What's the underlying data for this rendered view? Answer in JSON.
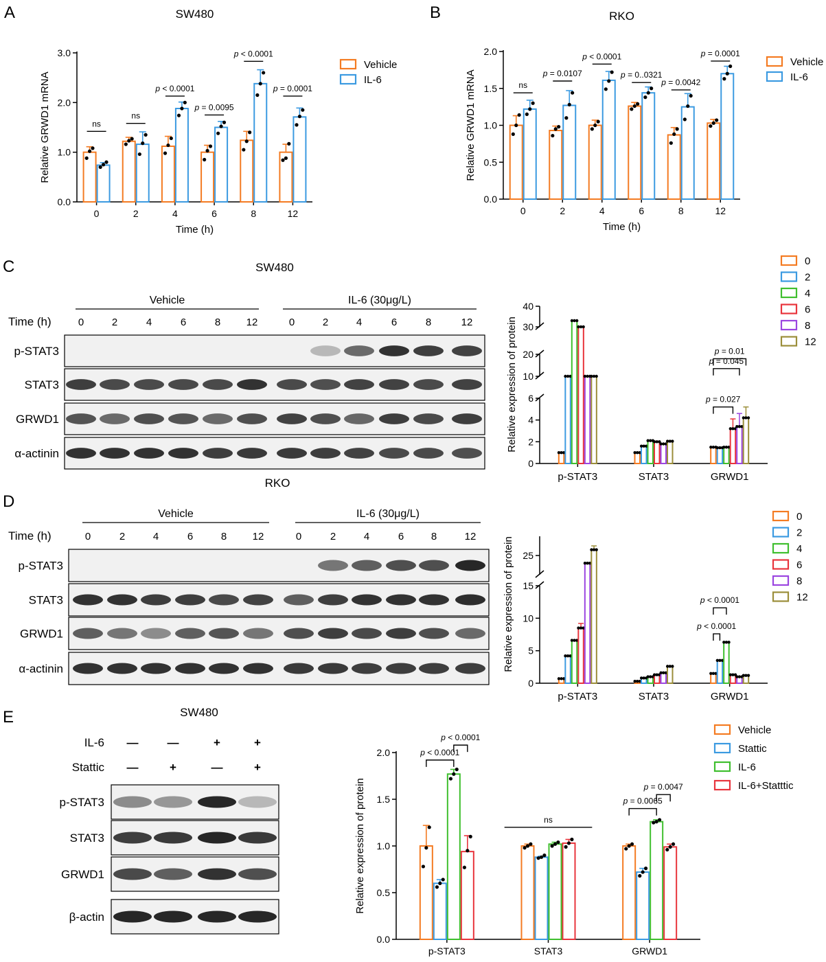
{
  "panels": [
    "A",
    "B",
    "C",
    "D",
    "E"
  ],
  "chart_data": [
    {
      "id": "A",
      "type": "bar",
      "title": "SW480",
      "xlabel": "Time (h)",
      "ylabel": "Relative GRWD1 mRNA",
      "categories": [
        "0",
        "2",
        "4",
        "6",
        "8",
        "12"
      ],
      "ylim": [
        0,
        3
      ],
      "yticks": [
        "0.0",
        "1.0",
        "2.0",
        "3.0"
      ],
      "legend": "top-right",
      "series": [
        {
          "name": "Vehicle",
          "color": "#f47b22",
          "values": [
            1.0,
            1.22,
            1.12,
            1.0,
            1.24,
            1.0
          ],
          "errors": [
            0.11,
            0.08,
            0.2,
            0.14,
            0.18,
            0.16
          ],
          "points": [
            [
              0.88,
              1.02,
              1.08
            ],
            [
              1.16,
              1.23,
              1.27
            ],
            [
              0.98,
              1.14,
              1.28
            ],
            [
              0.85,
              1.03,
              1.12
            ],
            [
              1.05,
              1.22,
              1.4
            ],
            [
              0.84,
              0.88,
              1.17
            ]
          ]
        },
        {
          "name": "IL-6",
          "color": "#3b9ae1",
          "values": [
            0.74,
            1.16,
            1.88,
            1.5,
            2.38,
            1.71
          ],
          "errors": [
            0.05,
            0.25,
            0.13,
            0.12,
            0.28,
            0.18
          ],
          "points": [
            [
              0.7,
              0.75,
              0.8
            ],
            [
              0.96,
              1.18,
              1.35
            ],
            [
              1.74,
              1.88,
              2.0
            ],
            [
              1.38,
              1.52,
              1.6
            ],
            [
              2.15,
              2.38,
              2.6
            ],
            [
              1.55,
              1.72,
              1.85
            ]
          ]
        }
      ],
      "annotations": [
        {
          "between": [
            0,
            0
          ],
          "label": "ns",
          "y": 1.42
        },
        {
          "between": [
            1,
            1
          ],
          "label": "ns",
          "y": 1.58
        },
        {
          "between": [
            2,
            2
          ],
          "label": "p < 0.0001",
          "y": 2.13
        },
        {
          "between": [
            3,
            3
          ],
          "label": "p = 0.0095",
          "y": 1.75
        },
        {
          "between": [
            4,
            4
          ],
          "label": "p < 0.0001",
          "y": 2.83
        },
        {
          "between": [
            5,
            5
          ],
          "label": "p = 0.0001",
          "y": 2.13
        }
      ]
    },
    {
      "id": "B",
      "type": "bar",
      "title": "RKO",
      "xlabel": "Time (h)",
      "ylabel": "Relative GRWD1 mRNA",
      "categories": [
        "0",
        "2",
        "4",
        "6",
        "8",
        "12"
      ],
      "ylim": [
        0,
        2.0
      ],
      "yticks": [
        "0.0",
        "0.5",
        "1.0",
        "1.5",
        "2.0"
      ],
      "legend": "top-right",
      "series": [
        {
          "name": "Vehicle",
          "color": "#f47b22",
          "values": [
            1.0,
            0.93,
            1.0,
            1.26,
            0.87,
            1.03
          ],
          "errors": [
            0.13,
            0.06,
            0.07,
            0.05,
            0.1,
            0.05
          ],
          "points": [
            [
              0.88,
              1.0,
              1.14
            ],
            [
              0.86,
              0.95,
              0.98
            ],
            [
              0.95,
              1.0,
              1.05
            ],
            [
              1.22,
              1.26,
              1.29
            ],
            [
              0.76,
              0.88,
              0.95
            ],
            [
              0.99,
              1.03,
              1.07
            ]
          ]
        },
        {
          "name": "IL-6",
          "color": "#3b9ae1",
          "values": [
            1.22,
            1.27,
            1.61,
            1.44,
            1.25,
            1.7
          ],
          "errors": [
            0.12,
            0.2,
            0.12,
            0.08,
            0.18,
            0.1
          ],
          "points": [
            [
              1.15,
              1.22,
              1.3
            ],
            [
              1.1,
              1.28,
              1.44
            ],
            [
              1.49,
              1.6,
              1.72
            ],
            [
              1.38,
              1.44,
              1.5
            ],
            [
              1.08,
              1.26,
              1.4
            ],
            [
              1.63,
              1.7,
              1.8
            ]
          ]
        }
      ],
      "annotations": [
        {
          "between": [
            0,
            0
          ],
          "label": "ns",
          "y": 1.44
        },
        {
          "between": [
            1,
            1
          ],
          "label": "p = 0.0107",
          "y": 1.6
        },
        {
          "between": [
            2,
            2
          ],
          "label": "p < 0.0001",
          "y": 1.83
        },
        {
          "between": [
            3,
            3
          ],
          "label": "p = 0..0321",
          "y": 1.58
        },
        {
          "between": [
            4,
            4
          ],
          "label": "p = 0.0042",
          "y": 1.48
        },
        {
          "between": [
            5,
            5
          ],
          "label": "p = 0.0001",
          "y": 1.87
        }
      ]
    },
    {
      "id": "C",
      "type": "bar",
      "title": "",
      "xlabel": "",
      "ylabel": "Relative expression of protein",
      "categories": [
        "p-STAT3",
        "STAT3",
        "GRWD1"
      ],
      "broken_axis": true,
      "segments": [
        {
          "range": [
            0,
            6
          ],
          "ticks": [
            "0",
            "2",
            "4",
            "6"
          ]
        },
        {
          "range": [
            10,
            20
          ],
          "ticks": [
            "10",
            "20"
          ]
        },
        {
          "range": [
            30,
            40
          ],
          "ticks": [
            "30",
            "40"
          ]
        }
      ],
      "legend": "top-right",
      "series": [
        {
          "name": "0",
          "color": "#f47b22",
          "values": [
            1.0,
            1.0,
            1.5
          ],
          "errors": [
            0,
            0,
            0
          ]
        },
        {
          "name": "2",
          "color": "#3b9ae1",
          "values": [
            8.2,
            1.6,
            1.45
          ],
          "errors": [
            0,
            0,
            0
          ]
        },
        {
          "name": "4",
          "color": "#3fbf2e",
          "values": [
            33.0,
            2.1,
            1.5
          ],
          "errors": [
            0,
            0,
            0
          ]
        },
        {
          "name": "6",
          "color": "#e8343c",
          "values": [
            29.0,
            2.0,
            3.2
          ],
          "errors": [
            0,
            0,
            0.9
          ]
        },
        {
          "name": "8",
          "color": "#9b45e0",
          "values": [
            9.8,
            1.8,
            3.4
          ],
          "errors": [
            0,
            0,
            1.2
          ]
        },
        {
          "name": "12",
          "color": "#9b8e3a",
          "values": [
            10.0,
            2.05,
            4.2
          ],
          "errors": [
            0,
            0,
            1.0
          ]
        }
      ],
      "annotations": [
        {
          "group": 2,
          "between": [
            0,
            3
          ],
          "label": "p = 0.027",
          "y": 5.2
        },
        {
          "group": 2,
          "between": [
            0,
            4
          ],
          "label": "p = 0.045",
          "y": 13.5
        },
        {
          "group": 2,
          "between": [
            0,
            5
          ],
          "label": "p = 0.01",
          "y": 18.0
        }
      ]
    },
    {
      "id": "D",
      "type": "bar",
      "title": "",
      "xlabel": "",
      "ylabel": "Relative expression of protein",
      "categories": [
        "p-STAT3",
        "STAT3",
        "GRWD1"
      ],
      "broken_axis": true,
      "segments": [
        {
          "range": [
            0,
            15
          ],
          "ticks": [
            "0",
            "5",
            "10",
            "15"
          ]
        },
        {
          "range": [
            20,
            30
          ],
          "ticks": [
            "25"
          ]
        }
      ],
      "legend": "top-right",
      "series": [
        {
          "name": "0",
          "color": "#f47b22",
          "values": [
            0.7,
            0.3,
            1.5
          ],
          "errors": [
            0,
            0,
            0
          ]
        },
        {
          "name": "2",
          "color": "#3b9ae1",
          "values": [
            4.2,
            0.8,
            3.5
          ],
          "errors": [
            0,
            0,
            0
          ]
        },
        {
          "name": "4",
          "color": "#3fbf2e",
          "values": [
            6.6,
            1.0,
            6.3
          ],
          "errors": [
            0,
            0,
            0
          ]
        },
        {
          "name": "6",
          "color": "#e8343c",
          "values": [
            8.5,
            1.3,
            1.3
          ],
          "errors": [
            0.7,
            0,
            0
          ]
        },
        {
          "name": "8",
          "color": "#9b45e0",
          "values": [
            23.0,
            1.6,
            1.0
          ],
          "errors": [
            0,
            0,
            0
          ]
        },
        {
          "name": "12",
          "color": "#9b8e3a",
          "values": [
            26.5,
            2.6,
            1.2
          ],
          "errors": [
            1.0,
            0,
            0
          ]
        }
      ],
      "annotations": [
        {
          "group": 2,
          "between": [
            0,
            1
          ],
          "label": "p < 0.0001",
          "y": 7.6
        },
        {
          "group": 2,
          "between": [
            0,
            2
          ],
          "label": "p < 0.0001",
          "y": 11.6
        }
      ]
    },
    {
      "id": "E",
      "type": "bar",
      "title": "",
      "xlabel": "",
      "ylabel": "Relative expression of protein",
      "categories": [
        "p-STAT3",
        "STAT3",
        "GRWD1"
      ],
      "ylim": [
        0,
        2.0
      ],
      "yticks": [
        "0.0",
        "0.5",
        "1.0",
        "1.5",
        "2.0"
      ],
      "legend": "top-right",
      "series": [
        {
          "name": "Vehicle",
          "color": "#f47b22",
          "values": [
            1.0,
            1.0,
            1.0
          ],
          "errors": [
            0.22,
            0.02,
            0.02
          ],
          "points": [
            [
              0.78,
              0.98,
              1.2
            ],
            [
              0.98,
              1.0,
              1.02
            ],
            [
              0.97,
              1.0,
              1.02
            ]
          ]
        },
        {
          "name": "Stattic",
          "color": "#3b9ae1",
          "values": [
            0.6,
            0.88,
            0.72
          ],
          "errors": [
            0.04,
            0.01,
            0.04
          ],
          "points": [
            [
              0.56,
              0.6,
              0.64
            ],
            [
              0.87,
              0.88,
              0.9
            ],
            [
              0.68,
              0.72,
              0.76
            ]
          ]
        },
        {
          "name": "IL-6",
          "color": "#3fbf2e",
          "values": [
            1.77,
            1.02,
            1.26
          ],
          "errors": [
            0.05,
            0.02,
            0.02
          ],
          "points": [
            [
              1.72,
              1.77,
              1.82
            ],
            [
              1.0,
              1.02,
              1.04
            ],
            [
              1.25,
              1.26,
              1.28
            ]
          ]
        },
        {
          "name": "IL-6+Statttic",
          "color": "#e8343c",
          "values": [
            0.94,
            1.03,
            0.99
          ],
          "errors": [
            0.17,
            0.04,
            0.03
          ],
          "points": [
            [
              0.77,
              0.95,
              1.1
            ],
            [
              0.99,
              1.03,
              1.07
            ],
            [
              0.96,
              0.99,
              1.02
            ]
          ]
        }
      ],
      "annotations": [
        {
          "group": 0,
          "between": [
            0,
            2
          ],
          "label": "p < 0.0001",
          "y": 1.92
        },
        {
          "group": 0,
          "between": [
            2,
            3
          ],
          "label": "p < 0.0001",
          "y": 2.08
        },
        {
          "span": [
            1,
            1
          ],
          "between": [
            0,
            3
          ],
          "label": "ns",
          "y": 1.2
        },
        {
          "group": 2,
          "between": [
            0,
            2
          ],
          "label": "p = 0.0065",
          "y": 1.4
        },
        {
          "group": 2,
          "between": [
            2,
            3
          ],
          "label": "p = 0.0047",
          "y": 1.55
        }
      ]
    }
  ],
  "blots": [
    {
      "id": "C",
      "title": "SW480",
      "groups": [
        "Vehicle",
        "IL-6 (30μg/L)"
      ],
      "time_label": "Time (h)",
      "lanes": [
        "0",
        "2",
        "4",
        "6",
        "8",
        "12",
        "0",
        "2",
        "4",
        "6",
        "8",
        "12"
      ],
      "rows": [
        {
          "label": "p-STAT3",
          "intensities": [
            0.03,
            0.03,
            0.03,
            0.03,
            0.03,
            0.03,
            0.04,
            0.25,
            0.6,
            0.85,
            0.8,
            0.78
          ]
        },
        {
          "label": "STAT3",
          "intensities": [
            0.8,
            0.75,
            0.75,
            0.75,
            0.75,
            0.85,
            0.75,
            0.72,
            0.78,
            0.78,
            0.75,
            0.78
          ]
        },
        {
          "label": "GRWD1",
          "intensities": [
            0.7,
            0.6,
            0.72,
            0.7,
            0.6,
            0.72,
            0.78,
            0.72,
            0.62,
            0.8,
            0.75,
            0.8
          ]
        },
        {
          "label": "α-actinin",
          "intensities": [
            0.85,
            0.85,
            0.85,
            0.85,
            0.8,
            0.82,
            0.82,
            0.8,
            0.78,
            0.75,
            0.75,
            0.72
          ]
        }
      ]
    },
    {
      "id": "D",
      "title": "RKO",
      "groups": [
        "Vehicle",
        "IL-6 (30μg/L)"
      ],
      "time_label": "Time (h)",
      "lanes": [
        "0",
        "2",
        "4",
        "6",
        "8",
        "12",
        "0",
        "2",
        "4",
        "6",
        "8",
        "12"
      ],
      "rows": [
        {
          "label": "p-STAT3",
          "intensities": [
            0.02,
            0.02,
            0.02,
            0.02,
            0.02,
            0.02,
            0.02,
            0.55,
            0.65,
            0.72,
            0.72,
            0.9
          ]
        },
        {
          "label": "STAT3",
          "intensities": [
            0.85,
            0.85,
            0.8,
            0.8,
            0.75,
            0.78,
            0.65,
            0.8,
            0.85,
            0.85,
            0.85,
            0.88
          ]
        },
        {
          "label": "GRWD1",
          "intensities": [
            0.65,
            0.55,
            0.45,
            0.65,
            0.7,
            0.55,
            0.72,
            0.8,
            0.75,
            0.8,
            0.72,
            0.6
          ]
        },
        {
          "label": "α-actinin",
          "intensities": [
            0.85,
            0.85,
            0.85,
            0.85,
            0.85,
            0.85,
            0.82,
            0.82,
            0.8,
            0.8,
            0.8,
            0.8
          ]
        }
      ]
    },
    {
      "id": "E",
      "title": "SW480",
      "treatments": [
        {
          "label": "IL-6",
          "marks": [
            "—",
            "—",
            "+",
            "+"
          ]
        },
        {
          "label": "Stattic",
          "marks": [
            "—",
            "+",
            "—",
            "+"
          ]
        }
      ],
      "rows": [
        {
          "label": "p-STAT3",
          "intensities": [
            0.45,
            0.4,
            0.9,
            0.25
          ]
        },
        {
          "label": "STAT3",
          "intensities": [
            0.8,
            0.82,
            0.9,
            0.82
          ]
        },
        {
          "label": "GRWD1",
          "intensities": [
            0.75,
            0.65,
            0.85,
            0.72
          ]
        },
        {
          "label": "β-actin",
          "intensities": [
            0.9,
            0.9,
            0.9,
            0.9
          ]
        }
      ]
    }
  ]
}
